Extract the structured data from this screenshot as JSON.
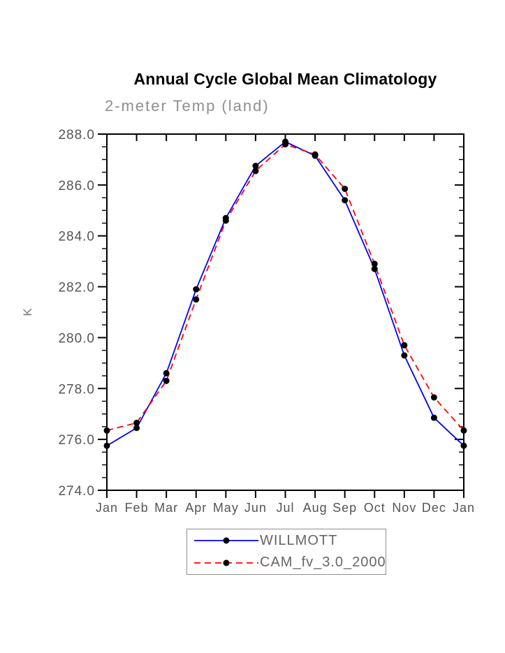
{
  "chart_data": {
    "type": "line",
    "title": "Annual Cycle Global Mean Climatology",
    "subtitle": "2-meter Temp (land)",
    "ylabel": "K",
    "xlabel": "",
    "x_tick_labels": [
      "Jan",
      "Feb",
      "Mar",
      "Apr",
      "May",
      "Jun",
      "Jul",
      "Aug",
      "Sep",
      "Oct",
      "Nov",
      "Dec",
      "Jan"
    ],
    "ylim": [
      274.0,
      288.0
    ],
    "y_major_tick_step": 2.0,
    "y_minor_tick_step": 0.5,
    "y_tick_labels": [
      "274.0",
      "276.0",
      "278.0",
      "280.0",
      "282.0",
      "284.0",
      "286.0",
      "288.0"
    ],
    "grid": false,
    "legend_position": "bottom-center",
    "series": [
      {
        "name": "WILLMOTT",
        "color": "#0000ff",
        "line_style": "solid",
        "marker": "circle",
        "marker_color": "#000000",
        "values": [
          275.75,
          276.45,
          278.6,
          281.9,
          284.7,
          286.75,
          287.7,
          287.15,
          285.4,
          282.7,
          279.3,
          276.85,
          275.75
        ]
      },
      {
        "name": "CAM_fv_3.0_2000",
        "color": "#ff0000",
        "line_style": "dashed",
        "marker": "circle",
        "marker_color": "#000000",
        "values": [
          276.35,
          276.65,
          278.3,
          281.5,
          284.6,
          286.55,
          287.6,
          287.2,
          285.85,
          282.9,
          279.7,
          277.65,
          276.35
        ]
      }
    ]
  },
  "text_colors": {
    "tick_label": "#555555",
    "axis_title": "#777777",
    "subtitle": "#8f8f8f"
  }
}
